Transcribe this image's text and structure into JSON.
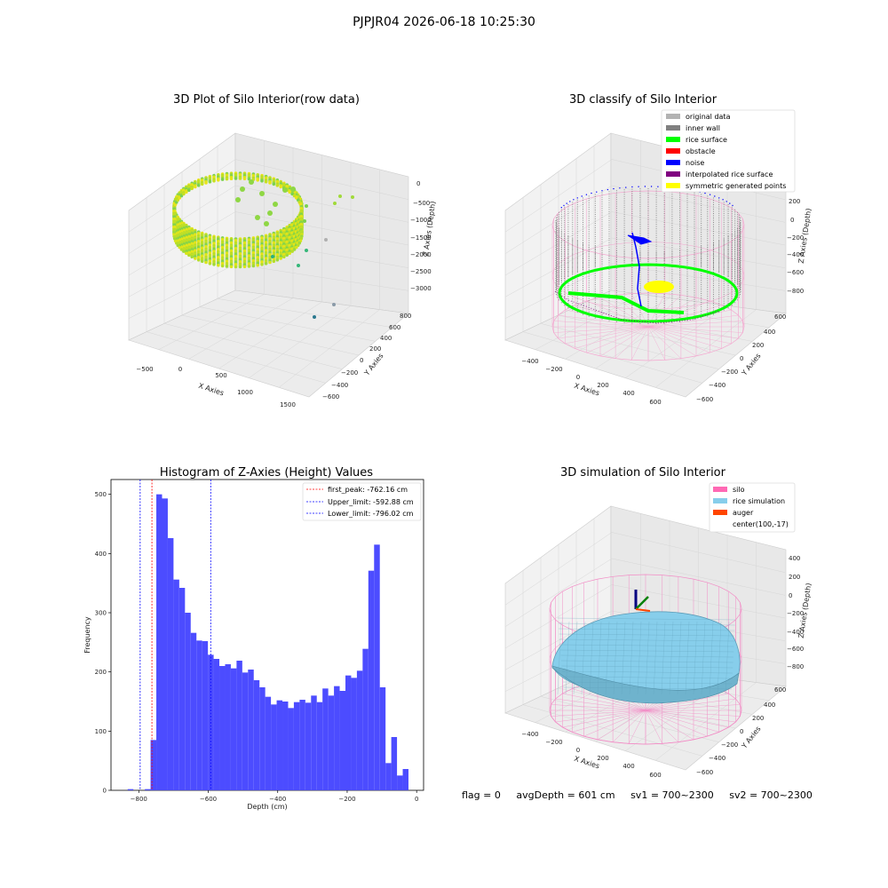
{
  "suptitle": "PJPJR04 2026-06-18 10:25:30",
  "footer": {
    "flag": "flag = 0",
    "avg_depth": "avgDepth = 601 cm",
    "sv1": "sv1 = 700~2300",
    "sv2": "sv2 = 700~2300"
  },
  "colors": {
    "bar": "#4c4cff",
    "original": "#b3b3b3",
    "inner_wall": "#808080",
    "rice_surface": "#00ff00",
    "obstacle": "#ff0000",
    "noise": "#0000ff",
    "interpolated": "#800080",
    "symmetric": "#ffff00",
    "silo": "#ff69b4",
    "rice_sim": "#87ceeb",
    "auger": "#ff4500"
  },
  "chart_data": [
    {
      "type": "scatter3d",
      "title": "3D Plot of Silo Interior(row data)",
      "xlabel": "X Axies",
      "ylabel": "Y Axies",
      "zlabel": "Z Axies (Depth)",
      "xticks": [
        "−500",
        "0",
        "500",
        "1000",
        "1500"
      ],
      "yticks": [
        "800",
        "600",
        "400",
        "200",
        "0",
        "−200",
        "−400",
        "−600"
      ],
      "zticks": [
        "0",
        "−500",
        "−1000",
        "−1500",
        "−2000",
        "−2500",
        "−3000"
      ]
    },
    {
      "type": "scatter3d",
      "title": "3D classify of Silo Interior",
      "xlabel": "X Axies",
      "ylabel": "Y Axies",
      "zlabel": "Z Axies (Depth)",
      "xticks": [
        "−400",
        "−200",
        "0",
        "200",
        "400",
        "600"
      ],
      "yticks": [
        "600",
        "400",
        "200",
        "0",
        "−200",
        "−400",
        "−600"
      ],
      "zticks": [
        "200",
        "0",
        "−200",
        "−400",
        "−600",
        "−800"
      ],
      "legend": [
        "original data",
        "inner wall",
        "rice surface",
        "obstacle",
        "noise",
        "interpolated rice surface",
        "symmetric generated points"
      ]
    },
    {
      "type": "bar",
      "title": "Histogram of Z-Axies (Height) Values",
      "xlabel": "Depth (cm)",
      "ylabel": "Frequency",
      "xlim": [
        -880,
        20
      ],
      "ylim": [
        0,
        525
      ],
      "xticks": [
        -800,
        -600,
        -400,
        -200,
        0
      ],
      "xtick_labels": [
        "−800",
        "−600",
        "−400",
        "−200",
        "0"
      ],
      "yticks": [
        0,
        100,
        200,
        300,
        400,
        500
      ],
      "bin_width": 16.5,
      "bin_start": -832,
      "values": [
        2,
        0,
        0,
        2,
        85,
        500,
        493,
        426,
        356,
        342,
        300,
        266,
        253,
        252,
        229,
        222,
        210,
        213,
        206,
        219,
        199,
        204,
        186,
        174,
        158,
        145,
        152,
        150,
        139,
        149,
        153,
        148,
        160,
        149,
        172,
        160,
        176,
        168,
        194,
        190,
        202,
        239,
        371,
        415,
        174,
        46,
        90,
        25,
        36
      ],
      "lines": [
        {
          "label": "first_peak: -762.16 cm",
          "x": -762.16,
          "color": "#ff0000"
        },
        {
          "label": "Upper_limit: -592.88 cm",
          "x": -592.88,
          "color": "#0000ff"
        },
        {
          "label": "Lower_limit: -796.02 cm",
          "x": -796.02,
          "color": "#0000ff"
        }
      ],
      "legend_position": "top-right"
    },
    {
      "type": "surface3d",
      "title": "3D simulation of Silo Interior",
      "xlabel": "X Axies",
      "ylabel": "Y Axies",
      "zlabel": "Z Axies (Depth)",
      "xticks": [
        "−400",
        "−200",
        "0",
        "200",
        "400",
        "600"
      ],
      "yticks": [
        "600",
        "400",
        "200",
        "0",
        "−200",
        "−400",
        "−600"
      ],
      "zticks": [
        "400",
        "200",
        "0",
        "−200",
        "−400",
        "−600",
        "−800"
      ],
      "legend": [
        "silo",
        "rice simulation",
        "auger",
        "center(100,-17)"
      ]
    }
  ]
}
